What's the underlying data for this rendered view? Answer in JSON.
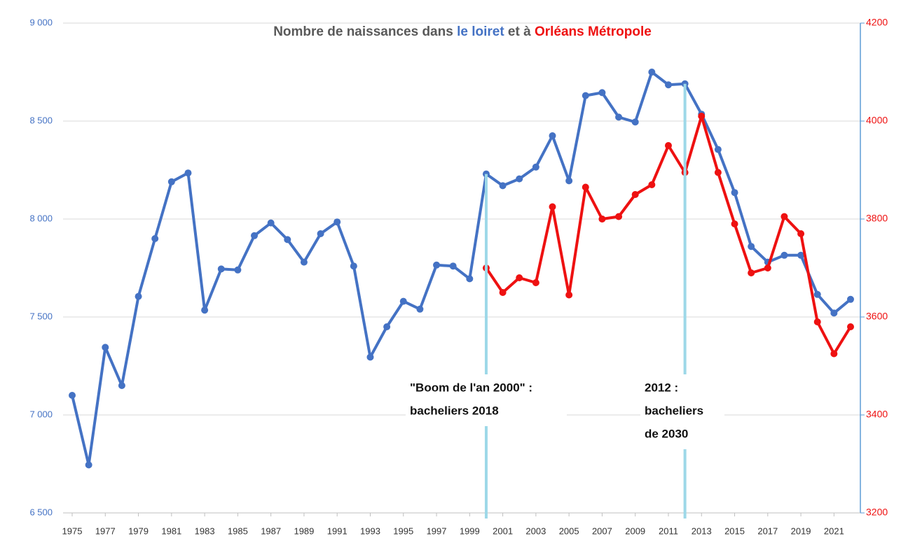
{
  "chart_data": {
    "type": "line",
    "title_parts": [
      {
        "text": "Nombre de naissances dans ",
        "color": "#595959"
      },
      {
        "text": "le loiret",
        "color": "#4472c4"
      },
      {
        "text": " et à ",
        "color": "#595959"
      },
      {
        "text": "Orléans Métropole",
        "color": "#ee1111"
      }
    ],
    "x": [
      1975,
      1976,
      1977,
      1978,
      1979,
      1980,
      1981,
      1982,
      1983,
      1984,
      1985,
      1986,
      1987,
      1988,
      1989,
      1990,
      1991,
      1992,
      1993,
      1994,
      1995,
      1996,
      1997,
      1998,
      1999,
      2000,
      2001,
      2002,
      2003,
      2004,
      2005,
      2006,
      2007,
      2008,
      2009,
      2010,
      2011,
      2012,
      2013,
      2014,
      2015,
      2016,
      2017,
      2018,
      2019,
      2020,
      2021,
      2022
    ],
    "xlim": [
      1975,
      2022
    ],
    "xticks": [
      1975,
      1977,
      1979,
      1981,
      1983,
      1985,
      1987,
      1989,
      1991,
      1993,
      1995,
      1997,
      1999,
      2001,
      2003,
      2005,
      2007,
      2009,
      2011,
      2013,
      2015,
      2017,
      2019,
      2021
    ],
    "ylim": [
      6500,
      9000
    ],
    "yticks": [
      {
        "value": 6500,
        "label": "6 500"
      },
      {
        "value": 7000,
        "label": "7 000"
      },
      {
        "value": 7500,
        "label": "7 500"
      },
      {
        "value": 8000,
        "label": "8 000"
      },
      {
        "value": 8500,
        "label": "8 500"
      },
      {
        "value": 9000,
        "label": "9 000"
      }
    ],
    "y2lim": [
      3200,
      4200
    ],
    "y2ticks": [
      3200,
      3400,
      3600,
      3800,
      4000,
      4200
    ],
    "grid": true,
    "series": [
      {
        "name": "le loiret",
        "color": "#4472c4",
        "values": [
          7100,
          6745,
          7345,
          7150,
          7605,
          7900,
          8190,
          8235,
          7535,
          7745,
          7740,
          7915,
          7980,
          7895,
          7780,
          7925,
          7985,
          7760,
          7295,
          7450,
          7580,
          7540,
          7765,
          7760,
          7695,
          8230,
          8170,
          8205,
          8265,
          8425,
          8195,
          8630,
          8645,
          8520,
          8495,
          8750,
          8685,
          8690,
          8535,
          8355,
          8135,
          7860,
          7780,
          7815,
          7815,
          7615,
          7520,
          7590
        ]
      },
      {
        "name": "Orléans Métropole",
        "color": "#ee1111",
        "axis": "y2",
        "values": [
          null,
          null,
          null,
          null,
          null,
          null,
          null,
          null,
          null,
          null,
          null,
          null,
          null,
          null,
          null,
          null,
          null,
          null,
          null,
          null,
          null,
          null,
          null,
          null,
          null,
          3700,
          3650,
          3680,
          3670,
          3825,
          3645,
          3865,
          3800,
          3805,
          3850,
          3870,
          3950,
          3895,
          4010,
          3895,
          3790,
          3690,
          3700,
          3805,
          3770,
          3590,
          3525,
          3580
        ]
      }
    ],
    "annotations": [
      {
        "x": 2000,
        "lines": [
          "\"Boom de l'an 2000\" :",
          "bacheliers 2018"
        ]
      },
      {
        "x": 2012,
        "lines": [
          "2012 :",
          "bacheliers",
          "de 2030"
        ]
      }
    ]
  }
}
